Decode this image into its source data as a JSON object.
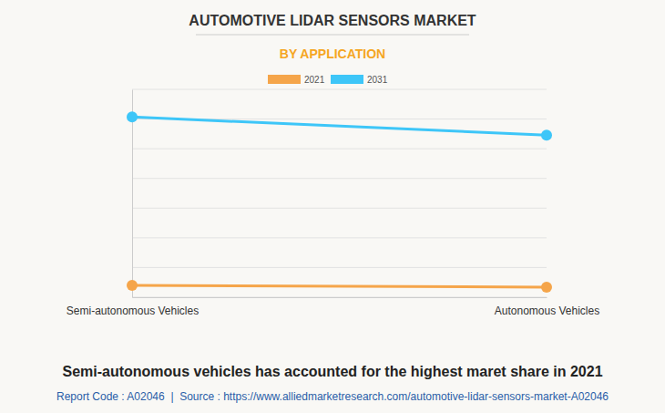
{
  "chart_data": {
    "type": "line",
    "title": "AUTOMOTIVE LIDAR SENSORS MARKET",
    "subtitle": "BY APPLICATION",
    "categories": [
      "Semi-autonomous Vehicles",
      "Autonomous Vehicles"
    ],
    "series": [
      {
        "name": "2021",
        "color": "#f5a54a",
        "values": [
          0.4,
          0.34
        ],
        "marker": "circle"
      },
      {
        "name": "2031",
        "color": "#3ec6f8",
        "values": [
          6.07,
          5.46
        ],
        "marker": "circle"
      }
    ],
    "ylim": [
      0,
      7
    ],
    "yticks": [
      0,
      1,
      2,
      3,
      4,
      5,
      6,
      7
    ],
    "grid": true,
    "legend": "top",
    "tick_labels": "x",
    "annotations": [
      "Semi-autonomous vehicles has accounted for the highest maret share in 2021",
      "Report Code : A02046  |  Source : https://www.alliedmarketresearch.com/automotive-lidar-sensors-market-A02046"
    ]
  }
}
